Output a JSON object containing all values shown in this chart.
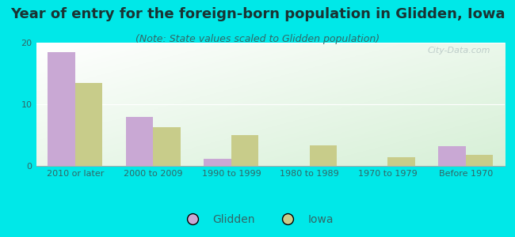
{
  "title": "Year of entry for the foreign-born population in Glidden, Iowa",
  "subtitle": "(Note: State values scaled to Glidden population)",
  "categories": [
    "2010 or later",
    "2000 to 2009",
    "1990 to 1999",
    "1980 to 1989",
    "1970 to 1979",
    "Before 1970"
  ],
  "glidden_values": [
    18.5,
    8.0,
    1.1,
    0.0,
    0.0,
    3.2
  ],
  "iowa_values": [
    13.5,
    6.3,
    5.0,
    3.3,
    1.4,
    1.8
  ],
  "glidden_color": "#c9a8d4",
  "iowa_color": "#c8cc8a",
  "background_outer": "#00e8e8",
  "ylim": [
    0,
    20
  ],
  "yticks": [
    0,
    10,
    20
  ],
  "bar_width": 0.35,
  "title_fontsize": 13,
  "subtitle_fontsize": 9,
  "tick_fontsize": 8,
  "legend_fontsize": 10,
  "watermark": "City-Data.com"
}
